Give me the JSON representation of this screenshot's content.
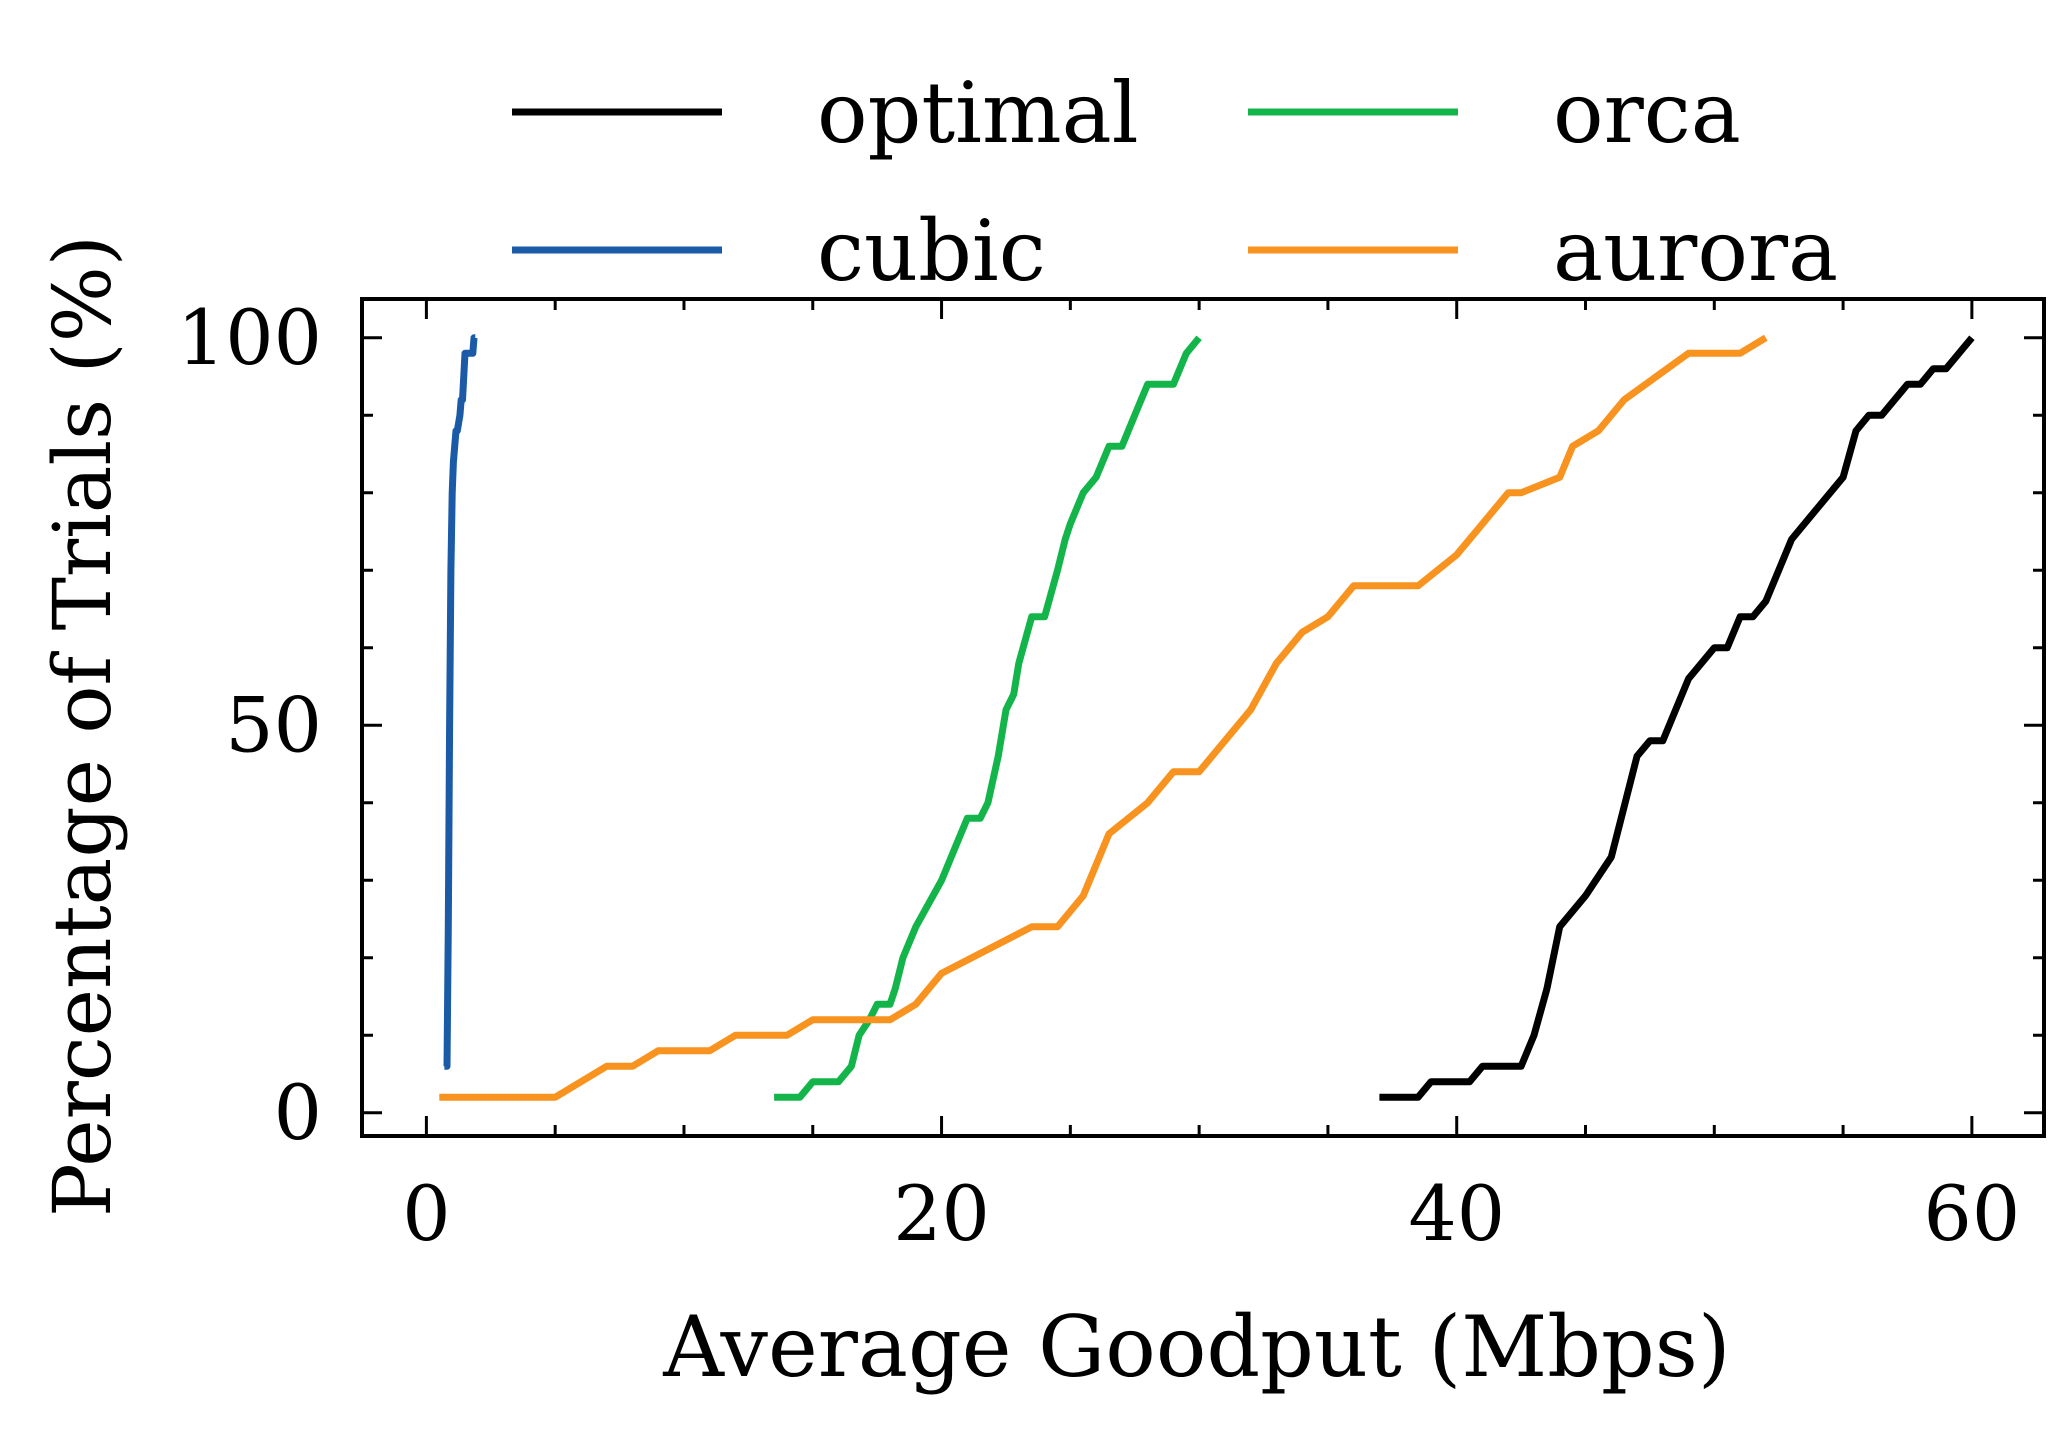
{
  "chart_data": {
    "type": "line",
    "title": "",
    "xlabel": "Average Goodput (Mbps)",
    "ylabel": "Percentage of Trials (%)",
    "xlim": [
      -2.5,
      62.8
    ],
    "ylim": [
      -3,
      105
    ],
    "xticks": [
      0,
      20,
      40,
      60
    ],
    "yticks": [
      0,
      50,
      100
    ],
    "xtick_labels": [
      "0",
      "20",
      "40",
      "60"
    ],
    "ytick_labels": [
      "0",
      "50",
      "100"
    ],
    "grid": false,
    "legend": {
      "position": "top",
      "columns": 2
    },
    "series": [
      {
        "name": "optimal",
        "color": "#000000",
        "x": [
          37.0,
          38.5,
          39.0,
          40.5,
          41.0,
          42.5,
          43.0,
          43.5,
          44.0,
          45.0,
          46.0,
          47.0,
          47.5,
          48.0,
          49.0,
          50.0,
          50.5,
          51.0,
          51.5,
          52.0,
          53.0,
          54.0,
          55.0,
          55.5,
          56.0,
          56.5,
          57.0,
          57.5,
          58.0,
          58.5,
          59.0,
          59.5,
          60.0
        ],
        "y": [
          2,
          2,
          4,
          4,
          6,
          6,
          10,
          16,
          24,
          28,
          33,
          46,
          48,
          48,
          56,
          60,
          60,
          64,
          64,
          66,
          74,
          78,
          82,
          88,
          90,
          90,
          92,
          94,
          94,
          96,
          96,
          98,
          100
        ]
      },
      {
        "name": "cubic",
        "color": "#1a5aa6",
        "x": [
          0.7,
          0.8,
          0.85,
          0.9,
          0.95,
          1.0,
          1.05,
          1.1,
          1.15,
          1.2,
          1.3,
          1.35,
          1.4,
          1.5,
          1.6,
          1.8,
          1.85,
          1.9
        ],
        "y": [
          6,
          6,
          24,
          50,
          70,
          80,
          84,
          86,
          88,
          88,
          90,
          92,
          92,
          98,
          98,
          98,
          100,
          100
        ]
      },
      {
        "name": "orca",
        "color": "#13b54a",
        "x": [
          13.5,
          14.5,
          15.0,
          16.0,
          16.5,
          16.8,
          17.2,
          17.5,
          18.0,
          18.2,
          18.5,
          19.0,
          20.0,
          20.5,
          21.0,
          21.5,
          21.8,
          22.2,
          22.5,
          22.8,
          23.0,
          23.5,
          24.0,
          24.5,
          24.8,
          25.0,
          25.5,
          26.0,
          26.5,
          27.0,
          27.5,
          28.0,
          28.5,
          29.0,
          29.5,
          30.0
        ],
        "y": [
          2,
          2,
          4,
          4,
          6,
          10,
          12,
          14,
          14,
          16,
          20,
          24,
          30,
          34,
          38,
          38,
          40,
          46,
          52,
          54,
          58,
          64,
          64,
          70,
          74,
          76,
          80,
          82,
          86,
          86,
          90,
          94,
          94,
          94,
          98,
          100
        ]
      },
      {
        "name": "aurora",
        "color": "#f7931e",
        "x": [
          0.5,
          5.0,
          7.0,
          8.0,
          9.0,
          11.0,
          12.0,
          14.0,
          15.0,
          16.0,
          18.0,
          19.0,
          20.0,
          23.5,
          24.5,
          25.5,
          26.5,
          28.0,
          29.0,
          30.0,
          32.0,
          33.0,
          34.0,
          35.0,
          36.0,
          37.0,
          38.5,
          40.0,
          41.0,
          42.0,
          42.5,
          44.0,
          44.5,
          45.5,
          46.5,
          49.0,
          51.0,
          52.0
        ],
        "y": [
          2,
          2,
          6,
          6,
          8,
          8,
          10,
          10,
          12,
          12,
          12,
          14,
          18,
          24,
          24,
          28,
          36,
          40,
          44,
          44,
          52,
          58,
          62,
          64,
          68,
          68,
          68,
          72,
          76,
          80,
          80,
          82,
          86,
          88,
          92,
          98,
          98,
          100
        ]
      }
    ]
  }
}
